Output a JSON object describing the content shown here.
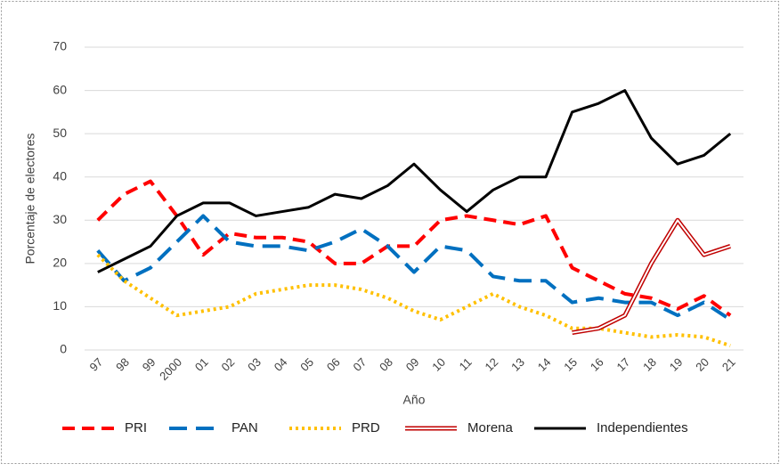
{
  "chart_data": {
    "type": "line",
    "x_label": "Año",
    "y_label": "Porcentaje de electores",
    "categories": [
      "97",
      "98",
      "99",
      "2000",
      "01",
      "02",
      "03",
      "04",
      "05",
      "06",
      "07",
      "08",
      "09",
      "10",
      "11",
      "12",
      "13",
      "14",
      "15",
      "16",
      "17",
      "18",
      "19",
      "20",
      "21"
    ],
    "ylim": [
      0,
      70
    ],
    "yticks": [
      0,
      10,
      20,
      30,
      40,
      50,
      60,
      70
    ],
    "grid": true,
    "legend": "bottom",
    "series": [
      {
        "name": "PRI",
        "color": "#ff0000",
        "line_style": "dashed",
        "values": [
          30,
          36,
          39,
          31,
          22,
          27,
          26,
          26,
          25,
          20,
          20,
          24,
          24,
          30,
          31,
          30,
          29,
          31,
          19,
          16,
          13,
          12,
          9.5,
          12.5,
          8
        ]
      },
      {
        "name": "PAN",
        "color": "#0070c0",
        "line_style": "long-dashed",
        "values": [
          23,
          16,
          19,
          25,
          31,
          25,
          24,
          24,
          23,
          25,
          28,
          24,
          18,
          24,
          23,
          17,
          16,
          16,
          11,
          12,
          11,
          11,
          8,
          11,
          7
        ]
      },
      {
        "name": "PRD",
        "color": "#ffc000",
        "line_style": "dotted",
        "values": [
          22,
          16,
          12,
          8,
          9,
          10,
          13,
          14,
          15,
          15,
          14,
          12,
          9,
          7,
          10,
          13,
          10,
          8,
          5,
          5,
          4,
          3,
          3.5,
          3,
          1
        ]
      },
      {
        "name": "Morena",
        "color": "#c00000",
        "line_style": "double",
        "values": [
          null,
          null,
          null,
          null,
          null,
          null,
          null,
          null,
          null,
          null,
          null,
          null,
          null,
          null,
          null,
          null,
          null,
          null,
          4,
          5,
          8,
          20,
          30,
          22,
          24
        ]
      },
      {
        "name": "Independientes",
        "color": "#000000",
        "line_style": "solid",
        "values": [
          18,
          21,
          24,
          31,
          34,
          34,
          31,
          32,
          33,
          36,
          35,
          38,
          43,
          37,
          32,
          37,
          40,
          40,
          55,
          57,
          60,
          49,
          43,
          45,
          50
        ]
      }
    ]
  }
}
